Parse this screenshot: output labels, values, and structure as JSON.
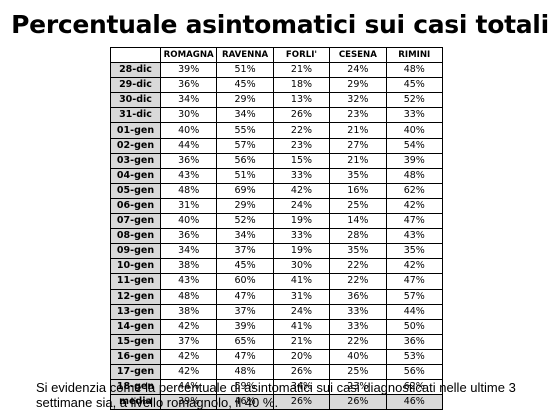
{
  "title": "Percentuale asintomatici sui casi totali",
  "table": {
    "columns": [
      "ROMAGNA",
      "RAVENNA",
      "FORLI'",
      "CESENA",
      "RIMINI"
    ],
    "rows": [
      {
        "date": "28-dic",
        "values": [
          "39%",
          "51%",
          "21%",
          "24%",
          "48%"
        ]
      },
      {
        "date": "29-dic",
        "values": [
          "36%",
          "45%",
          "18%",
          "29%",
          "45%"
        ]
      },
      {
        "date": "30-dic",
        "values": [
          "34%",
          "29%",
          "13%",
          "32%",
          "52%"
        ]
      },
      {
        "date": "31-dic",
        "values": [
          "30%",
          "34%",
          "26%",
          "23%",
          "33%"
        ]
      },
      {
        "date": "01-gen",
        "values": [
          "40%",
          "55%",
          "22%",
          "21%",
          "40%"
        ]
      },
      {
        "date": "02-gen",
        "values": [
          "44%",
          "57%",
          "23%",
          "27%",
          "54%"
        ]
      },
      {
        "date": "03-gen",
        "values": [
          "36%",
          "56%",
          "15%",
          "21%",
          "39%"
        ]
      },
      {
        "date": "04-gen",
        "values": [
          "43%",
          "51%",
          "33%",
          "35%",
          "48%"
        ]
      },
      {
        "date": "05-gen",
        "values": [
          "48%",
          "69%",
          "42%",
          "16%",
          "62%"
        ]
      },
      {
        "date": "06-gen",
        "values": [
          "31%",
          "29%",
          "24%",
          "25%",
          "42%"
        ]
      },
      {
        "date": "07-gen",
        "values": [
          "40%",
          "52%",
          "19%",
          "14%",
          "47%"
        ]
      },
      {
        "date": "08-gen",
        "values": [
          "36%",
          "34%",
          "33%",
          "28%",
          "43%"
        ]
      },
      {
        "date": "09-gen",
        "values": [
          "34%",
          "37%",
          "19%",
          "35%",
          "35%"
        ]
      },
      {
        "date": "10-gen",
        "values": [
          "38%",
          "45%",
          "30%",
          "22%",
          "42%"
        ]
      },
      {
        "date": "11-gen",
        "values": [
          "43%",
          "60%",
          "41%",
          "22%",
          "47%"
        ]
      },
      {
        "date": "12-gen",
        "values": [
          "48%",
          "47%",
          "31%",
          "36%",
          "57%"
        ]
      },
      {
        "date": "13-gen",
        "values": [
          "38%",
          "37%",
          "24%",
          "33%",
          "44%"
        ]
      },
      {
        "date": "14-gen",
        "values": [
          "42%",
          "39%",
          "41%",
          "33%",
          "50%"
        ]
      },
      {
        "date": "15-gen",
        "values": [
          "37%",
          "65%",
          "21%",
          "22%",
          "36%"
        ]
      },
      {
        "date": "16-gen",
        "values": [
          "42%",
          "47%",
          "20%",
          "40%",
          "53%"
        ]
      },
      {
        "date": "17-gen",
        "values": [
          "42%",
          "48%",
          "26%",
          "25%",
          "56%"
        ]
      },
      {
        "date": "18-gen",
        "values": [
          "44%",
          "59%",
          "34%",
          "23%",
          "62%"
        ]
      }
    ],
    "average": {
      "date": "media",
      "values": [
        "39%",
        "46%",
        "26%",
        "26%",
        "46%"
      ]
    }
  },
  "footnote": "Si evidenzia come la percentuale di asintomatici sui casi diagnosticati nelle ultime 3 settimane sia, a livello romagnolo, il 40 %.",
  "colors": {
    "header_fill": "#d9d9d9",
    "border": "#000000"
  }
}
